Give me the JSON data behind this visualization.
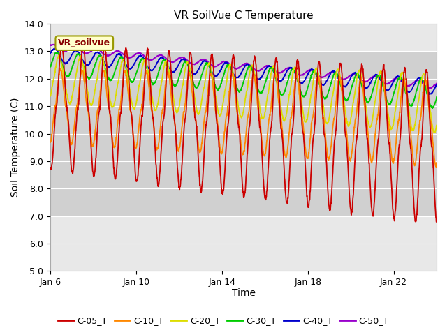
{
  "title": "VR SoilVue C Temperature",
  "xlabel": "Time",
  "ylabel": "Soil Temperature (C)",
  "ylim": [
    5.0,
    14.0
  ],
  "yticks": [
    5.0,
    6.0,
    7.0,
    8.0,
    9.0,
    10.0,
    11.0,
    12.0,
    13.0,
    14.0
  ],
  "xtick_days": [
    6,
    10,
    14,
    18,
    22
  ],
  "xtick_labels": [
    "Jan 6",
    "Jan 10",
    "Jan 14",
    "Jan 18",
    "Jan 22"
  ],
  "series_colors": {
    "C-05_T": "#cc0000",
    "C-10_T": "#ff8800",
    "C-20_T": "#dddd00",
    "C-30_T": "#00cc00",
    "C-40_T": "#0000cc",
    "C-50_T": "#9900cc"
  },
  "legend_label": "VR_soilvue",
  "legend_bg": "#ffffcc",
  "legend_border": "#999900",
  "shaded_ymin": 7.0,
  "shaded_ymax": 13.0,
  "background_plot": "#e8e8e8",
  "background_shaded": "#d0d0d0",
  "grid_color": "#ffffff"
}
